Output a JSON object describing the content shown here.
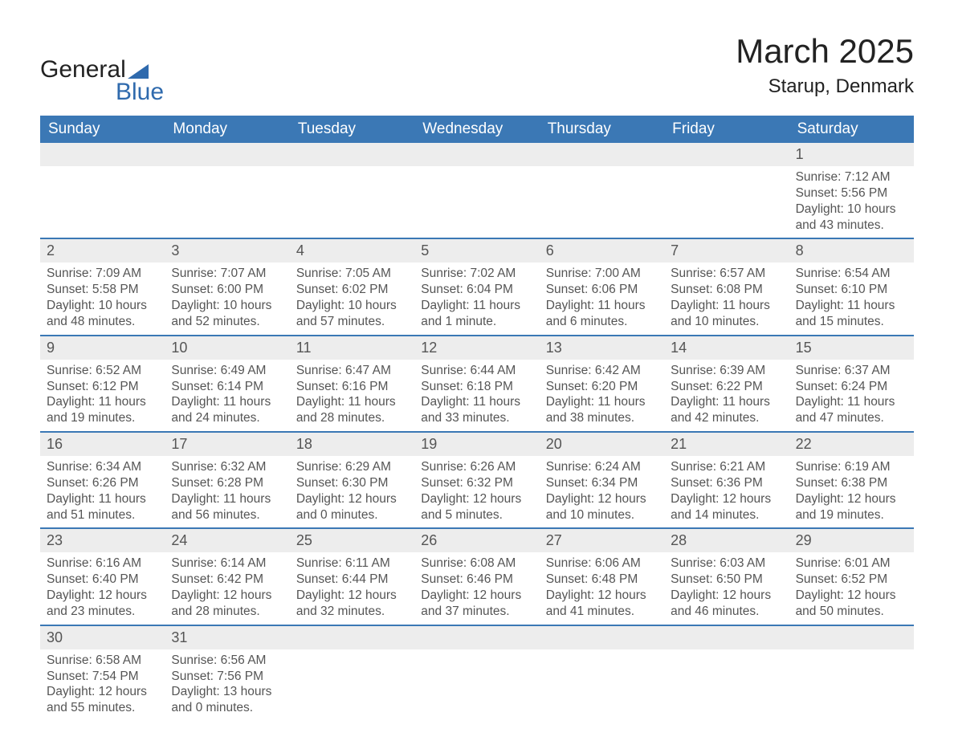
{
  "brand": {
    "word1": "General",
    "word2": "Blue",
    "accent_color": "#2f6aad"
  },
  "title": "March 2025",
  "location": "Starup, Denmark",
  "colors": {
    "header_bg": "#3b78b5",
    "header_text": "#ffffff",
    "row_divider": "#3b78b5",
    "daynum_bg": "#ededed",
    "body_text": "#555555",
    "page_bg": "#ffffff"
  },
  "days_of_week": [
    "Sunday",
    "Monday",
    "Tuesday",
    "Wednesday",
    "Thursday",
    "Friday",
    "Saturday"
  ],
  "weeks": [
    [
      {
        "n": "",
        "lines": []
      },
      {
        "n": "",
        "lines": []
      },
      {
        "n": "",
        "lines": []
      },
      {
        "n": "",
        "lines": []
      },
      {
        "n": "",
        "lines": []
      },
      {
        "n": "",
        "lines": []
      },
      {
        "n": "1",
        "lines": [
          "Sunrise: 7:12 AM",
          "Sunset: 5:56 PM",
          "Daylight: 10 hours and 43 minutes."
        ]
      }
    ],
    [
      {
        "n": "2",
        "lines": [
          "Sunrise: 7:09 AM",
          "Sunset: 5:58 PM",
          "Daylight: 10 hours and 48 minutes."
        ]
      },
      {
        "n": "3",
        "lines": [
          "Sunrise: 7:07 AM",
          "Sunset: 6:00 PM",
          "Daylight: 10 hours and 52 minutes."
        ]
      },
      {
        "n": "4",
        "lines": [
          "Sunrise: 7:05 AM",
          "Sunset: 6:02 PM",
          "Daylight: 10 hours and 57 minutes."
        ]
      },
      {
        "n": "5",
        "lines": [
          "Sunrise: 7:02 AM",
          "Sunset: 6:04 PM",
          "Daylight: 11 hours and 1 minute."
        ]
      },
      {
        "n": "6",
        "lines": [
          "Sunrise: 7:00 AM",
          "Sunset: 6:06 PM",
          "Daylight: 11 hours and 6 minutes."
        ]
      },
      {
        "n": "7",
        "lines": [
          "Sunrise: 6:57 AM",
          "Sunset: 6:08 PM",
          "Daylight: 11 hours and 10 minutes."
        ]
      },
      {
        "n": "8",
        "lines": [
          "Sunrise: 6:54 AM",
          "Sunset: 6:10 PM",
          "Daylight: 11 hours and 15 minutes."
        ]
      }
    ],
    [
      {
        "n": "9",
        "lines": [
          "Sunrise: 6:52 AM",
          "Sunset: 6:12 PM",
          "Daylight: 11 hours and 19 minutes."
        ]
      },
      {
        "n": "10",
        "lines": [
          "Sunrise: 6:49 AM",
          "Sunset: 6:14 PM",
          "Daylight: 11 hours and 24 minutes."
        ]
      },
      {
        "n": "11",
        "lines": [
          "Sunrise: 6:47 AM",
          "Sunset: 6:16 PM",
          "Daylight: 11 hours and 28 minutes."
        ]
      },
      {
        "n": "12",
        "lines": [
          "Sunrise: 6:44 AM",
          "Sunset: 6:18 PM",
          "Daylight: 11 hours and 33 minutes."
        ]
      },
      {
        "n": "13",
        "lines": [
          "Sunrise: 6:42 AM",
          "Sunset: 6:20 PM",
          "Daylight: 11 hours and 38 minutes."
        ]
      },
      {
        "n": "14",
        "lines": [
          "Sunrise: 6:39 AM",
          "Sunset: 6:22 PM",
          "Daylight: 11 hours and 42 minutes."
        ]
      },
      {
        "n": "15",
        "lines": [
          "Sunrise: 6:37 AM",
          "Sunset: 6:24 PM",
          "Daylight: 11 hours and 47 minutes."
        ]
      }
    ],
    [
      {
        "n": "16",
        "lines": [
          "Sunrise: 6:34 AM",
          "Sunset: 6:26 PM",
          "Daylight: 11 hours and 51 minutes."
        ]
      },
      {
        "n": "17",
        "lines": [
          "Sunrise: 6:32 AM",
          "Sunset: 6:28 PM",
          "Daylight: 11 hours and 56 minutes."
        ]
      },
      {
        "n": "18",
        "lines": [
          "Sunrise: 6:29 AM",
          "Sunset: 6:30 PM",
          "Daylight: 12 hours and 0 minutes."
        ]
      },
      {
        "n": "19",
        "lines": [
          "Sunrise: 6:26 AM",
          "Sunset: 6:32 PM",
          "Daylight: 12 hours and 5 minutes."
        ]
      },
      {
        "n": "20",
        "lines": [
          "Sunrise: 6:24 AM",
          "Sunset: 6:34 PM",
          "Daylight: 12 hours and 10 minutes."
        ]
      },
      {
        "n": "21",
        "lines": [
          "Sunrise: 6:21 AM",
          "Sunset: 6:36 PM",
          "Daylight: 12 hours and 14 minutes."
        ]
      },
      {
        "n": "22",
        "lines": [
          "Sunrise: 6:19 AM",
          "Sunset: 6:38 PM",
          "Daylight: 12 hours and 19 minutes."
        ]
      }
    ],
    [
      {
        "n": "23",
        "lines": [
          "Sunrise: 6:16 AM",
          "Sunset: 6:40 PM",
          "Daylight: 12 hours and 23 minutes."
        ]
      },
      {
        "n": "24",
        "lines": [
          "Sunrise: 6:14 AM",
          "Sunset: 6:42 PM",
          "Daylight: 12 hours and 28 minutes."
        ]
      },
      {
        "n": "25",
        "lines": [
          "Sunrise: 6:11 AM",
          "Sunset: 6:44 PM",
          "Daylight: 12 hours and 32 minutes."
        ]
      },
      {
        "n": "26",
        "lines": [
          "Sunrise: 6:08 AM",
          "Sunset: 6:46 PM",
          "Daylight: 12 hours and 37 minutes."
        ]
      },
      {
        "n": "27",
        "lines": [
          "Sunrise: 6:06 AM",
          "Sunset: 6:48 PM",
          "Daylight: 12 hours and 41 minutes."
        ]
      },
      {
        "n": "28",
        "lines": [
          "Sunrise: 6:03 AM",
          "Sunset: 6:50 PM",
          "Daylight: 12 hours and 46 minutes."
        ]
      },
      {
        "n": "29",
        "lines": [
          "Sunrise: 6:01 AM",
          "Sunset: 6:52 PM",
          "Daylight: 12 hours and 50 minutes."
        ]
      }
    ],
    [
      {
        "n": "30",
        "lines": [
          "Sunrise: 6:58 AM",
          "Sunset: 7:54 PM",
          "Daylight: 12 hours and 55 minutes."
        ]
      },
      {
        "n": "31",
        "lines": [
          "Sunrise: 6:56 AM",
          "Sunset: 7:56 PM",
          "Daylight: 13 hours and 0 minutes."
        ]
      },
      {
        "n": "",
        "lines": []
      },
      {
        "n": "",
        "lines": []
      },
      {
        "n": "",
        "lines": []
      },
      {
        "n": "",
        "lines": []
      },
      {
        "n": "",
        "lines": []
      }
    ]
  ]
}
